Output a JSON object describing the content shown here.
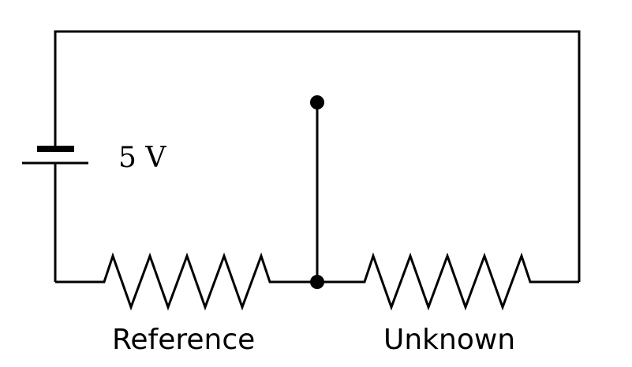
{
  "battery": {
    "label": "5 V"
  },
  "resistors": {
    "reference_label": "Reference",
    "unknown_label": "Unknown"
  }
}
